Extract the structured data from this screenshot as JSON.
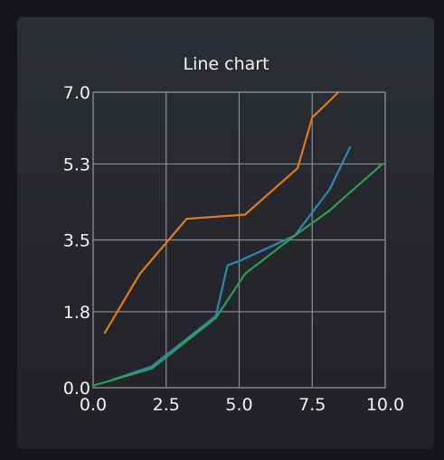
{
  "chart_data": {
    "type": "line",
    "title": "Line chart",
    "xlabel": "",
    "ylabel": "",
    "xlim": [
      0,
      10
    ],
    "ylim": [
      0,
      7
    ],
    "x_ticks": [
      "0.0",
      "2.5",
      "5.0",
      "7.5",
      "10.0"
    ],
    "y_ticks": [
      "0.0",
      "1.8",
      "3.5",
      "5.3",
      "7.0"
    ],
    "grid": true,
    "series": [
      {
        "color": "#e07a1f",
        "x": [
          0.4,
          1.6,
          3.2,
          5.2,
          7.0,
          7.5,
          8.4
        ],
        "y": [
          1.3,
          2.7,
          4.0,
          4.1,
          5.2,
          6.4,
          7.0
        ]
      },
      {
        "color": "#2f86b0",
        "x": [
          0.7,
          2.0,
          4.2,
          4.6,
          5.0,
          6.9,
          8.1,
          8.8
        ],
        "y": [
          0.2,
          0.5,
          1.7,
          2.9,
          3.0,
          3.6,
          4.7,
          5.7
        ]
      },
      {
        "color": "#2e9e4f",
        "x": [
          0.0,
          2.0,
          4.2,
          5.2,
          6.9,
          8.1,
          9.9
        ],
        "y": [
          0.05,
          0.45,
          1.65,
          2.7,
          3.6,
          4.2,
          5.3
        ]
      }
    ]
  }
}
